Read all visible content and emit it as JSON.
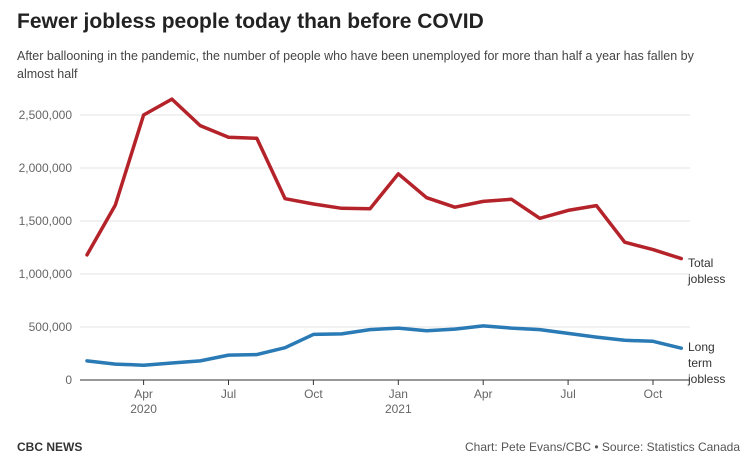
{
  "header": {
    "title": "Fewer jobless people today than before COVID",
    "subtitle": "After ballooning in the pandemic, the number of people who have been unemployed for more than half a year has fallen by almost half"
  },
  "footer": {
    "brand": "CBC NEWS",
    "credit": "Chart: Pete Evans/CBC • Source: Statistics Canada"
  },
  "chart_data": {
    "type": "line",
    "title": "Fewer jobless people today than before COVID",
    "subtitle": "After ballooning in the pandemic, the number of people who have been unemployed for more than half a year has fallen by almost half",
    "x": [
      "2020-02",
      "2020-03",
      "2020-04",
      "2020-05",
      "2020-06",
      "2020-07",
      "2020-08",
      "2020-09",
      "2020-10",
      "2020-11",
      "2020-12",
      "2021-01",
      "2021-02",
      "2021-03",
      "2021-04",
      "2021-05",
      "2021-06",
      "2021-07",
      "2021-08",
      "2021-09",
      "2021-10",
      "2021-11"
    ],
    "x_ticks": [
      {
        "x": "2020-04",
        "label": "Apr",
        "sublabel": "2020"
      },
      {
        "x": "2020-07",
        "label": "Jul",
        "sublabel": ""
      },
      {
        "x": "2020-10",
        "label": "Oct",
        "sublabel": ""
      },
      {
        "x": "2021-01",
        "label": "Jan",
        "sublabel": "2021"
      },
      {
        "x": "2021-04",
        "label": "Apr",
        "sublabel": ""
      },
      {
        "x": "2021-07",
        "label": "Jul",
        "sublabel": ""
      },
      {
        "x": "2021-10",
        "label": "Oct",
        "sublabel": ""
      }
    ],
    "y_ticks": [
      0,
      500000,
      1000000,
      1500000,
      2000000,
      2500000
    ],
    "y_tick_labels": [
      "0",
      "500,000",
      "1,000,000",
      "1,500,000",
      "2,000,000",
      "2,500,000"
    ],
    "ylim": [
      0,
      2500000
    ],
    "grid": true,
    "series": [
      {
        "name": "Total jobless",
        "label_lines": [
          "Total",
          "jobless"
        ],
        "color": "#b5232a",
        "values": [
          1180000,
          1650000,
          2500000,
          2650000,
          2400000,
          2290000,
          2280000,
          1710000,
          1660000,
          1620000,
          1615000,
          1945000,
          1720000,
          1630000,
          1685000,
          1705000,
          1525000,
          1600000,
          1645000,
          1300000,
          1230000,
          1145000
        ]
      },
      {
        "name": "Long term jobless",
        "label_lines": [
          "Long",
          "term",
          "jobless"
        ],
        "color": "#2a7ab5",
        "values": [
          180000,
          150000,
          140000,
          160000,
          180000,
          235000,
          240000,
          305000,
          430000,
          435000,
          475000,
          490000,
          465000,
          480000,
          510000,
          490000,
          475000,
          440000,
          405000,
          375000,
          365000,
          300000
        ]
      }
    ]
  }
}
